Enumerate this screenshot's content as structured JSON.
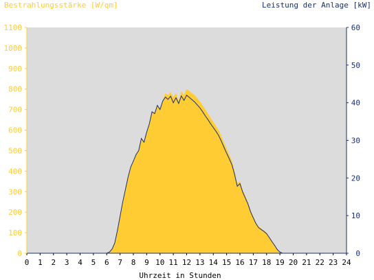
{
  "chart_data": {
    "type": "area",
    "title_left": "Bestrahlungsstärke [W/qm]",
    "title_right": "Leistung der Anlage [kW]",
    "xlabel": "Uhrzeit in Stunden",
    "xlim": [
      0,
      24
    ],
    "ylim_left": [
      0,
      1100
    ],
    "ylim_right": [
      0,
      60
    ],
    "x_ticks": [
      "0",
      "1",
      "2",
      "3",
      "4",
      "5",
      "6",
      "7",
      "8",
      "9",
      "10",
      "11",
      "12",
      "13",
      "14",
      "15",
      "16",
      "17",
      "18",
      "19",
      "20",
      "21",
      "22",
      "23",
      "24"
    ],
    "y_left_ticks": [
      "0",
      "100",
      "200",
      "300",
      "400",
      "500",
      "600",
      "700",
      "800",
      "900",
      "1000",
      "1100"
    ],
    "y_right_ticks": [
      "0",
      "10",
      "20",
      "30",
      "40",
      "50",
      "60"
    ],
    "grid": false,
    "colors": {
      "irradiance": "#ffcc33",
      "power": "#1a2f6e",
      "left_axis_text": "#ffcc33",
      "right_axis_text": "#1a2f6e",
      "plot_background": "#dcdcdc",
      "right_axis_line": "#1a2f6e"
    },
    "series": [
      {
        "axis": "left",
        "x": [
          0,
          6.0,
          6.2,
          6.4,
          6.6,
          6.8,
          7.0,
          7.2,
          7.4,
          7.6,
          7.8,
          8.0,
          8.2,
          8.4,
          8.6,
          8.8,
          9.0,
          9.2,
          9.4,
          9.6,
          9.8,
          10.0,
          10.2,
          10.4,
          10.6,
          10.8,
          11.0,
          11.2,
          11.4,
          11.6,
          11.8,
          12.0,
          12.2,
          12.4,
          12.6,
          12.8,
          13.0,
          13.2,
          13.4,
          13.6,
          13.8,
          14.0,
          14.2,
          14.4,
          14.6,
          14.8,
          15.0,
          15.2,
          15.4,
          15.6,
          15.8,
          16.0,
          16.2,
          16.4,
          16.6,
          16.8,
          17.0,
          17.2,
          17.4,
          17.6,
          17.8,
          18.0,
          18.2,
          18.4,
          18.6,
          18.8,
          19.0,
          19.2,
          24
        ],
        "values": [
          0,
          0,
          5,
          20,
          50,
          110,
          180,
          250,
          310,
          370,
          420,
          450,
          480,
          500,
          560,
          540,
          590,
          630,
          690,
          680,
          720,
          700,
          740,
          780,
          770,
          785,
          760,
          780,
          740,
          790,
          770,
          800,
          790,
          780,
          770,
          755,
          740,
          720,
          700,
          680,
          660,
          640,
          620,
          600,
          570,
          540,
          510,
          480,
          450,
          400,
          340,
          350,
          310,
          280,
          250,
          210,
          180,
          150,
          130,
          120,
          110,
          100,
          80,
          60,
          40,
          20,
          5,
          0,
          0
        ]
      },
      {
        "axis": "right",
        "x": [
          0,
          6.0,
          6.2,
          6.4,
          6.6,
          6.8,
          7.0,
          7.2,
          7.4,
          7.6,
          7.8,
          8.0,
          8.2,
          8.4,
          8.6,
          8.8,
          9.0,
          9.2,
          9.4,
          9.6,
          9.8,
          10.0,
          10.2,
          10.4,
          10.6,
          10.8,
          11.0,
          11.2,
          11.4,
          11.6,
          11.8,
          12.0,
          12.2,
          12.4,
          12.6,
          12.8,
          13.0,
          13.2,
          13.4,
          13.6,
          13.8,
          14.0,
          14.2,
          14.4,
          14.6,
          14.8,
          15.0,
          15.2,
          15.4,
          15.6,
          15.8,
          16.0,
          16.2,
          16.4,
          16.6,
          16.8,
          17.0,
          17.2,
          17.4,
          17.6,
          17.8,
          18.0,
          18.2,
          18.4,
          18.6,
          18.8,
          19.0,
          19.2,
          24
        ],
        "values": [
          0,
          0,
          0.3,
          1.1,
          2.7,
          6.0,
          9.8,
          13.6,
          16.9,
          20.2,
          22.9,
          24.5,
          26.2,
          27.3,
          30.5,
          29.5,
          32.2,
          34.4,
          37.6,
          37.1,
          39.3,
          38.2,
          40.4,
          41.5,
          40.9,
          41.7,
          40.0,
          41.3,
          39.8,
          41.8,
          40.6,
          42.0,
          41.4,
          40.8,
          40.2,
          39.4,
          38.6,
          37.6,
          36.5,
          35.5,
          34.4,
          33.4,
          32.4,
          31.3,
          29.8,
          28.2,
          26.6,
          25.1,
          23.5,
          20.9,
          17.8,
          18.5,
          16.3,
          14.7,
          13.1,
          11.0,
          9.4,
          7.9,
          6.8,
          6.3,
          5.8,
          5.2,
          4.2,
          3.1,
          2.1,
          1.0,
          0.3,
          0,
          0
        ]
      }
    ]
  }
}
